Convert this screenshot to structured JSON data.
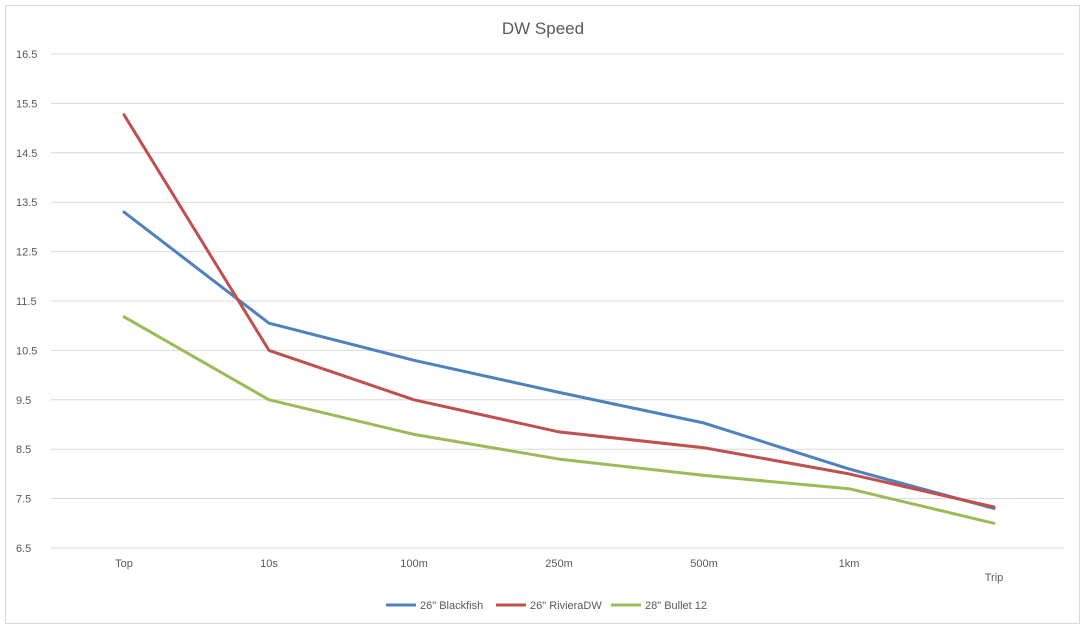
{
  "chart_data": {
    "type": "line",
    "title": "DW Speed",
    "xlabel": "",
    "ylabel": "",
    "categories": [
      "Top",
      "10s",
      "100m",
      "250m",
      "500m",
      "1km",
      "Trip"
    ],
    "ylim": [
      6.5,
      16.5
    ],
    "yticks": [
      "6.5",
      "7.5",
      "8.5",
      "9.5",
      "10.5",
      "11.5",
      "12.5",
      "13.5",
      "14.5",
      "15.5",
      "16.5"
    ],
    "grid": true,
    "legend_position": "bottom",
    "series": [
      {
        "name": "26\" Blackfish",
        "color": "#4f81bd",
        "values": [
          13.3,
          11.05,
          10.3,
          9.65,
          9.03,
          8.1,
          7.3
        ]
      },
      {
        "name": "26\" RivieraDW",
        "color": "#c0504d",
        "values": [
          15.27,
          10.5,
          9.5,
          8.85,
          8.53,
          8.0,
          7.33
        ]
      },
      {
        "name": "28\" Bullet 12",
        "color": "#9bbb59",
        "values": [
          11.18,
          9.5,
          8.8,
          8.3,
          7.97,
          7.7,
          7.0
        ]
      }
    ]
  }
}
